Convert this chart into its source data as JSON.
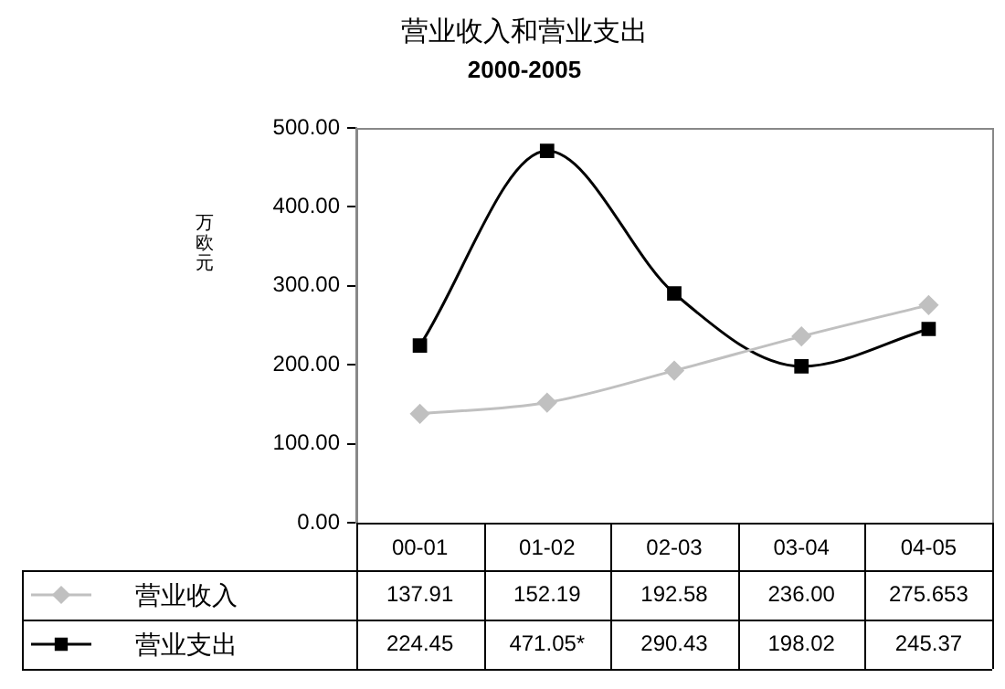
{
  "chart_data": {
    "type": "line",
    "title": "营业收入和营业支出",
    "subtitle": "2000-2005",
    "ylabel": "万欧元",
    "categories": [
      "00-01",
      "01-02",
      "02-03",
      "03-04",
      "04-05"
    ],
    "series": [
      {
        "name": "营业收入",
        "color": "#c0c0c0",
        "marker": "diamond",
        "values": [
          137.91,
          152.19,
          192.58,
          236.0,
          275.653
        ],
        "value_labels": [
          "137.91",
          "152.19",
          "192.58",
          "236.00",
          "275.653"
        ]
      },
      {
        "name": "营业支出",
        "color": "#000000",
        "marker": "square",
        "values": [
          224.45,
          471.05,
          290.43,
          198.02,
          245.37
        ],
        "value_labels": [
          "224.45",
          "471.05*",
          "290.43",
          "198.02",
          "245.37"
        ]
      }
    ],
    "ylim": [
      0,
      500
    ],
    "yticks": [
      {
        "value": 0,
        "label": "0.00"
      },
      {
        "value": 100,
        "label": "100.00"
      },
      {
        "value": 200,
        "label": "200.00"
      },
      {
        "value": 300,
        "label": "300.00"
      },
      {
        "value": 400,
        "label": "400.00"
      },
      {
        "value": 500,
        "label": "500.00"
      }
    ],
    "grid": false,
    "legend": "bottom",
    "data_labels": true
  }
}
